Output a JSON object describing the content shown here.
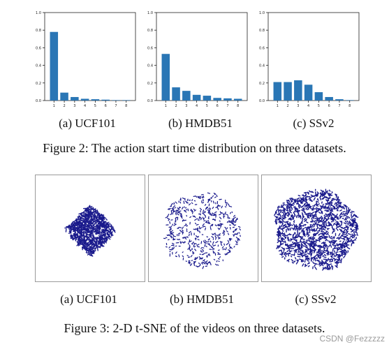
{
  "figure2": {
    "subcaptions": [
      "(a) UCF101",
      "(b) HMDB51",
      "(c) SSv2"
    ],
    "caption": "Figure 2: The action start time distribution on three datasets."
  },
  "figure3": {
    "subcaptions": [
      "(a) UCF101",
      "(b) HMDB51",
      "(c) SSv2"
    ],
    "caption": "Figure 3: 2-D t-SNE of the videos on three datasets."
  },
  "watermark": "CSDN @Fezzzzz",
  "colors": {
    "bar": "#2a76b5",
    "points": "#1a1a8c",
    "axis": "#222222"
  },
  "chart_data": [
    {
      "type": "bar",
      "categories": [
        "1",
        "2",
        "3",
        "4",
        "5",
        "6",
        "7",
        "8"
      ],
      "values": [
        0.78,
        0.09,
        0.04,
        0.02,
        0.015,
        0.01,
        0.005,
        0.005
      ],
      "title": "",
      "xlabel": "",
      "ylabel": "",
      "ylim": [
        0,
        1.0
      ],
      "yticks": [
        "0.0",
        "0.2",
        "0.4",
        "0.6",
        "0.8",
        "1.0"
      ]
    },
    {
      "type": "bar",
      "categories": [
        "1",
        "2",
        "3",
        "4",
        "5",
        "6",
        "7",
        "8"
      ],
      "values": [
        0.53,
        0.15,
        0.11,
        0.065,
        0.055,
        0.03,
        0.025,
        0.02
      ],
      "title": "",
      "xlabel": "",
      "ylabel": "",
      "ylim": [
        0,
        1.0
      ],
      "yticks": [
        "0.0",
        "0.2",
        "0.4",
        "0.6",
        "0.8",
        "1.0"
      ]
    },
    {
      "type": "bar",
      "categories": [
        "1",
        "2",
        "3",
        "4",
        "5",
        "6",
        "7",
        "8"
      ],
      "values": [
        0.21,
        0.21,
        0.23,
        0.18,
        0.095,
        0.04,
        0.015,
        0.005
      ],
      "title": "",
      "xlabel": "",
      "ylabel": "",
      "ylim": [
        0,
        1.0
      ],
      "yticks": [
        "0.0",
        "0.2",
        "0.4",
        "0.6",
        "0.8",
        "1.0"
      ]
    },
    {
      "type": "scatter",
      "shape": "diamond",
      "density": "dense",
      "title": "",
      "xlabel": "",
      "ylabel": ""
    },
    {
      "type": "scatter",
      "shape": "disc",
      "density": "sparse",
      "title": "",
      "xlabel": "",
      "ylabel": ""
    },
    {
      "type": "scatter",
      "shape": "disc",
      "density": "dense",
      "title": "",
      "xlabel": "",
      "ylabel": ""
    }
  ]
}
